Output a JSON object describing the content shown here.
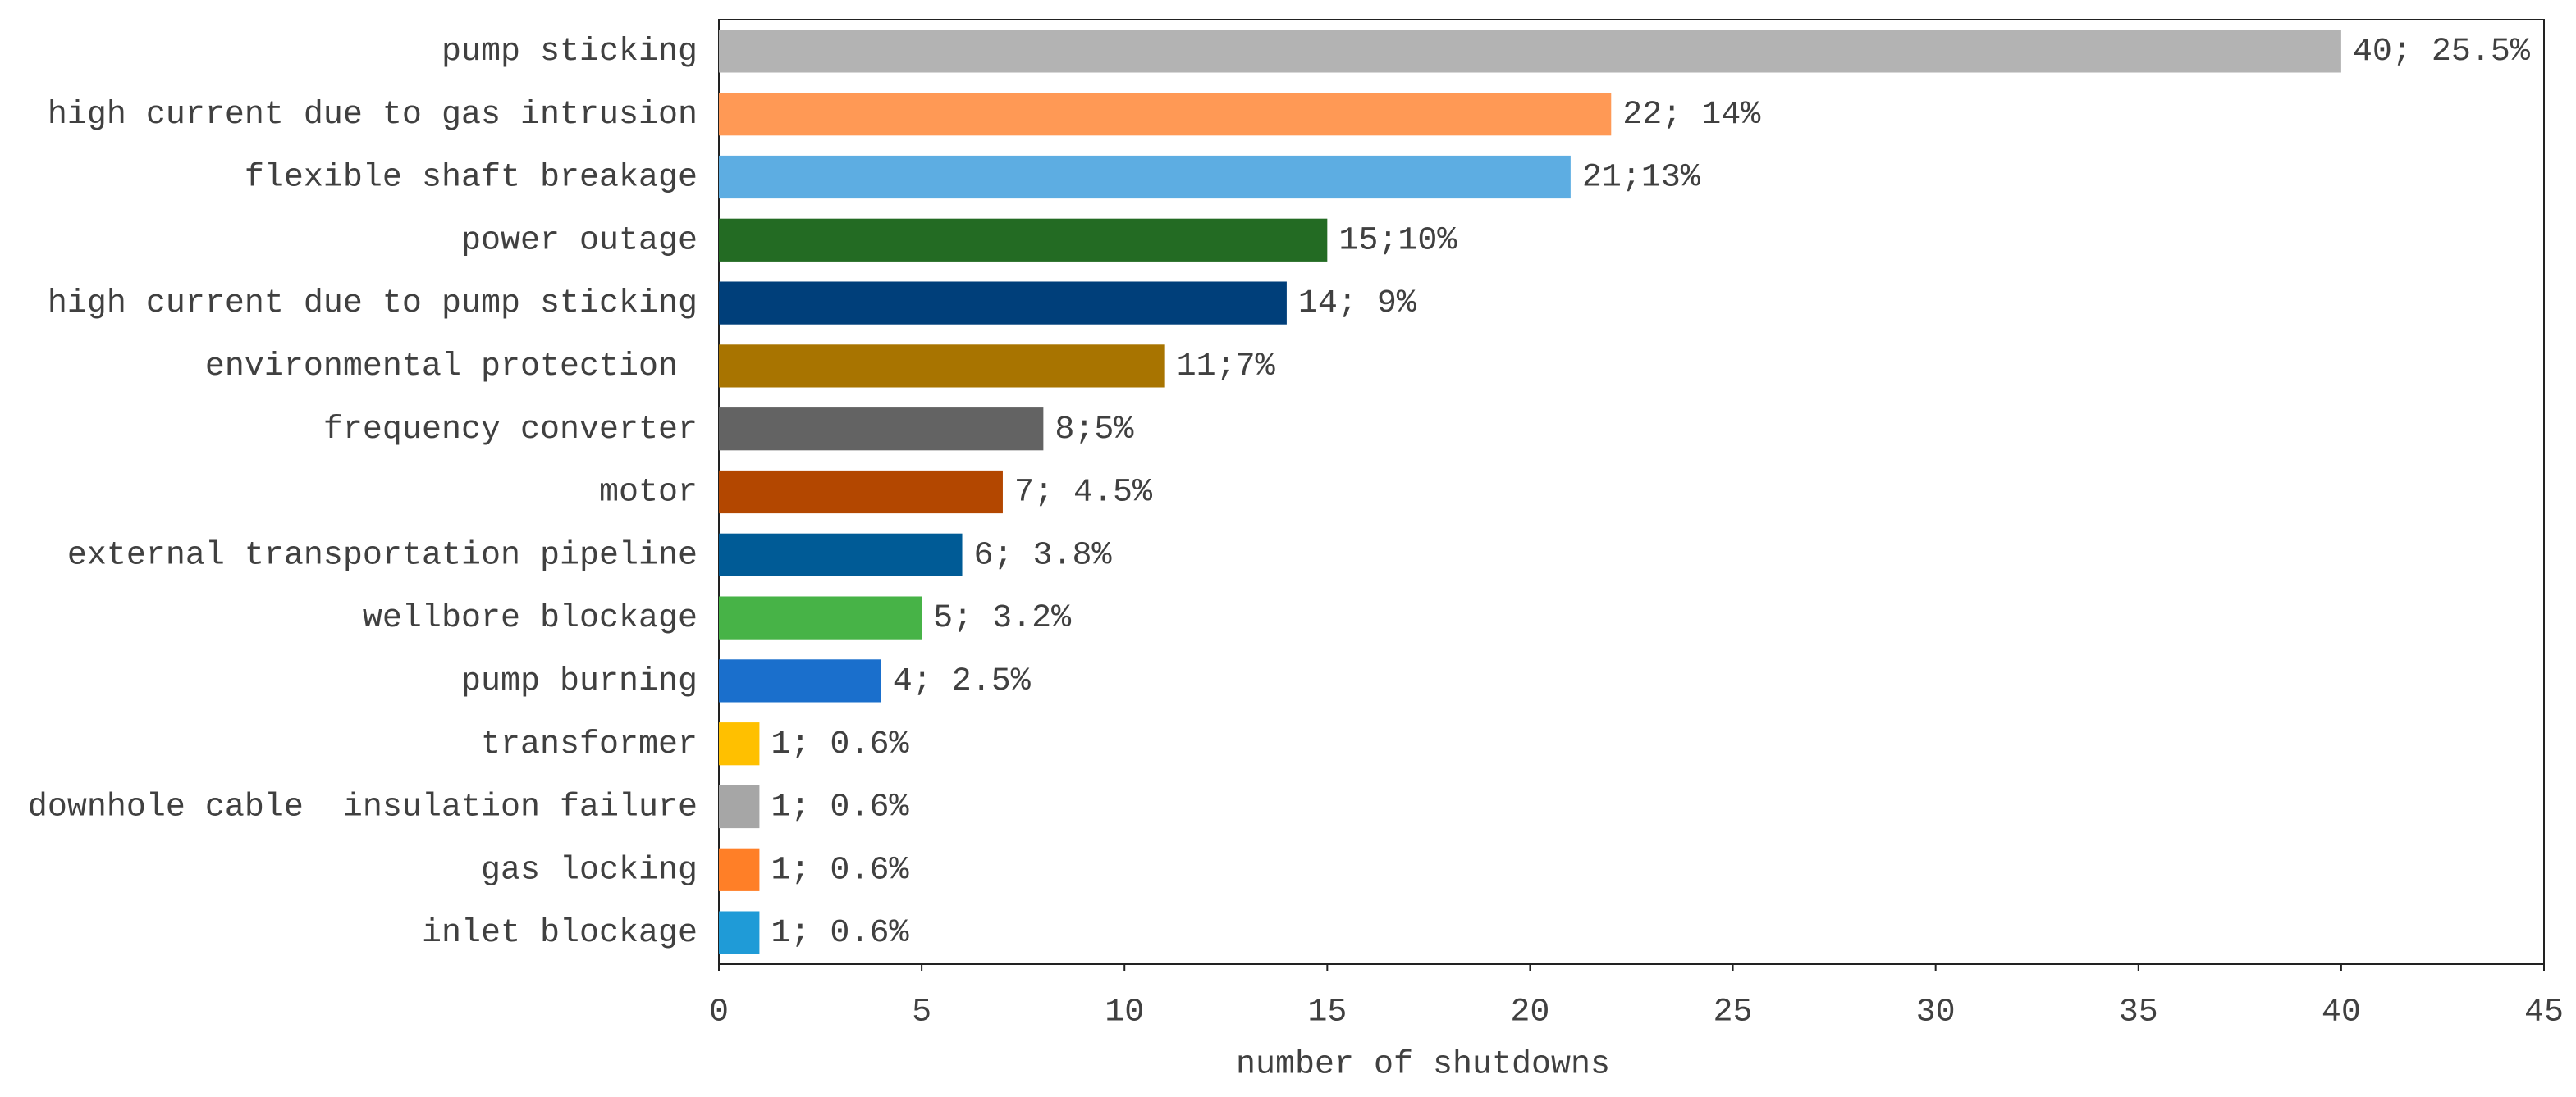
{
  "chart_data": {
    "type": "bar",
    "orientation": "horizontal",
    "x_label": "number of shutdowns",
    "categories": [
      "pump sticking",
      "high current due to gas intrusion",
      "flexible shaft breakage",
      "power outage",
      "high current due to pump sticking",
      "environmental protection ",
      "frequency converter",
      "motor",
      "external transportation pipeline",
      "wellbore blockage",
      "pump burning",
      "transformer",
      "downhole cable  insulation failure",
      "gas locking",
      "inlet blockage"
    ],
    "values": [
      40,
      22,
      21,
      15,
      14,
      11,
      8,
      7,
      6,
      5,
      4,
      1,
      1,
      1,
      1
    ],
    "value_labels": [
      "40; 25.5%",
      "22; 14%",
      "21;13%",
      "15;10%",
      "14; 9%",
      "11;7%",
      "8;5%",
      "7; 4.5%",
      "6; 3.8%",
      "5; 3.2%",
      "4; 2.5%",
      "1; 0.6%",
      "1; 0.6%",
      "1; 0.6%",
      "1; 0.6%"
    ],
    "colors": [
      "#b3b3b3",
      "#ff9955",
      "#5dade2",
      "#236b23",
      "#003f7a",
      "#a87400",
      "#636363",
      "#b34700",
      "#005b96",
      "#47b347",
      "#1a6fcc",
      "#ffc000",
      "#a6a6a6",
      "#ff7f27",
      "#1f9bd7"
    ],
    "xlim": [
      0,
      45
    ],
    "xticks": [
      0,
      5,
      10,
      15,
      20,
      25,
      30,
      35,
      40,
      45
    ]
  }
}
